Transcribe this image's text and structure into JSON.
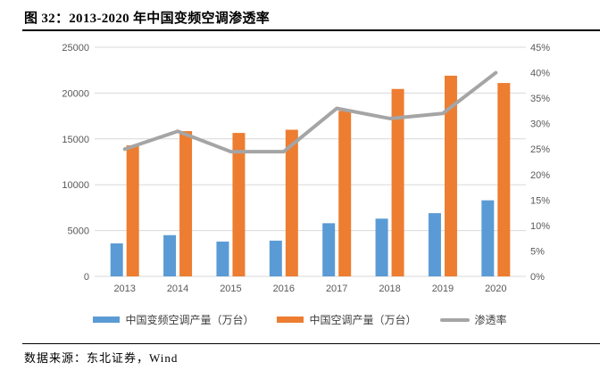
{
  "header": {
    "title": "图 32：2013-2020 年中国变频空调渗透率"
  },
  "footer": {
    "source": "数据来源：东北证券，Wind"
  },
  "colors": {
    "bar1": "#5B9BD5",
    "bar2": "#ED7D31",
    "line": "#A5A5A5",
    "grid": "#D9D9D9",
    "axis_text": "#595959",
    "legend_text": "#404040"
  },
  "chart_data": {
    "type": "bar",
    "subtype": "combo-bar-line",
    "title": "图 32：2013-2020 年中国变频空调渗透率",
    "categories": [
      "2013",
      "2014",
      "2015",
      "2016",
      "2017",
      "2018",
      "2019",
      "2020"
    ],
    "series": [
      {
        "name": "中国变频空调产量（万台）",
        "type": "bar",
        "axis": "left",
        "color_key": "bar1",
        "values": [
          3600,
          4500,
          3800,
          3900,
          5800,
          6300,
          6900,
          8300
        ]
      },
      {
        "name": "中国空调产量（万台）",
        "type": "bar",
        "axis": "left",
        "color_key": "bar2",
        "values": [
          14300,
          15850,
          15650,
          16000,
          18050,
          20450,
          21900,
          21100
        ]
      },
      {
        "name": "渗透率",
        "type": "line",
        "axis": "right",
        "color_key": "line",
        "values": [
          25,
          28.5,
          24.5,
          24.5,
          33,
          31,
          32,
          40
        ]
      }
    ],
    "left_axis": {
      "min": 0,
      "max": 25000,
      "step": 5000,
      "ticks": [
        "0",
        "5000",
        "10000",
        "15000",
        "20000",
        "25000"
      ]
    },
    "right_axis": {
      "min": 0,
      "max": 45,
      "step": 5,
      "ticks": [
        "0%",
        "5%",
        "10%",
        "15%",
        "20%",
        "25%",
        "30%",
        "35%",
        "40%",
        "45%"
      ]
    },
    "grid": true,
    "legend_position": "bottom"
  }
}
